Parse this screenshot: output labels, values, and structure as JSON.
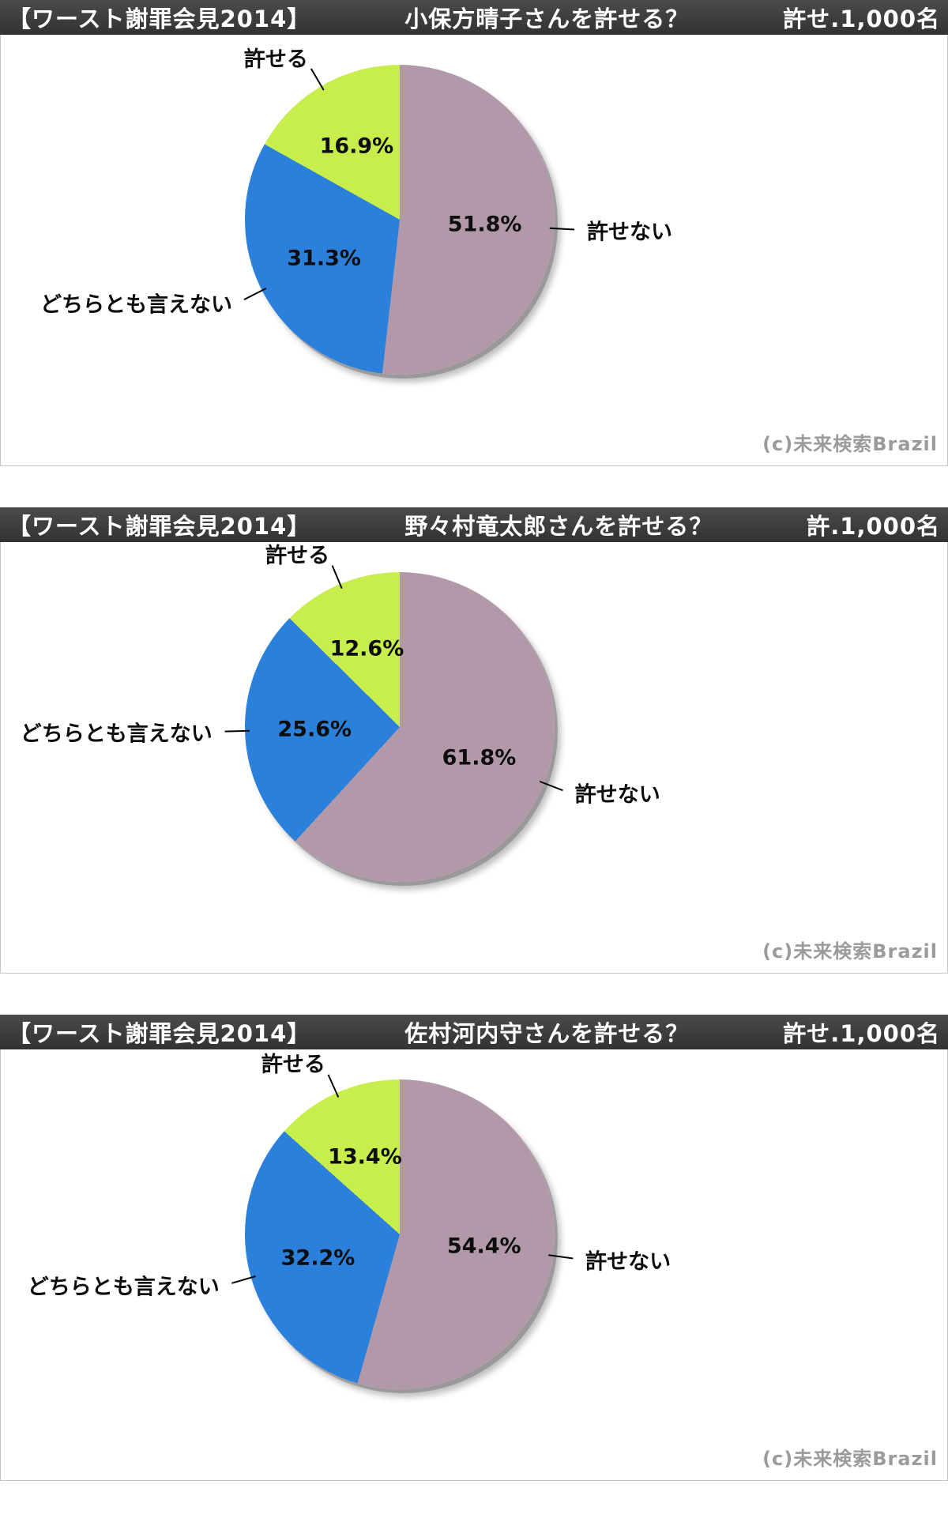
{
  "chart_data": [
    {
      "type": "pie",
      "header_prefix": "【ワースト謝罪会見2014】",
      "title": "小保方晴子さんを許せる？",
      "sample_label": "許せ.1,000名",
      "copyright": "(c)未来検索Brazil",
      "direction": "clockwise",
      "start_angle": "top",
      "legend": "none",
      "slices": [
        {
          "label": "許せない",
          "value": 51.8,
          "display": "51.8%",
          "color": "#b199aa"
        },
        {
          "label": "どちらとも言えない",
          "value": 31.3,
          "display": "31.3%",
          "color": "#2a80da"
        },
        {
          "label": "許せる",
          "value": 16.9,
          "display": "16.9%",
          "color": "#c8ee4d"
        }
      ]
    },
    {
      "type": "pie",
      "header_prefix": "【ワースト謝罪会見2014】",
      "title": "野々村竜太郎さんを許せる？",
      "sample_label": "許.1,000名",
      "copyright": "(c)未来検索Brazil",
      "direction": "clockwise",
      "start_angle": "top",
      "legend": "none",
      "slices": [
        {
          "label": "許せない",
          "value": 61.8,
          "display": "61.8%",
          "color": "#b199aa"
        },
        {
          "label": "どちらとも言えない",
          "value": 25.6,
          "display": "25.6%",
          "color": "#2a80da"
        },
        {
          "label": "許せる",
          "value": 12.6,
          "display": "12.6%",
          "color": "#c8ee4d"
        }
      ]
    },
    {
      "type": "pie",
      "header_prefix": "【ワースト謝罪会見2014】",
      "title": "佐村河内守さんを許せる？",
      "sample_label": "許せ.1,000名",
      "copyright": "(c)未来検索Brazil",
      "direction": "clockwise",
      "start_angle": "top",
      "legend": "none",
      "slices": [
        {
          "label": "許せない",
          "value": 54.4,
          "display": "54.4%",
          "color": "#b199aa"
        },
        {
          "label": "どちらとも言えない",
          "value": 32.2,
          "display": "32.2%",
          "color": "#2a80da"
        },
        {
          "label": "許せる",
          "value": 13.4,
          "display": "13.4%",
          "color": "#c8ee4d"
        }
      ]
    }
  ]
}
